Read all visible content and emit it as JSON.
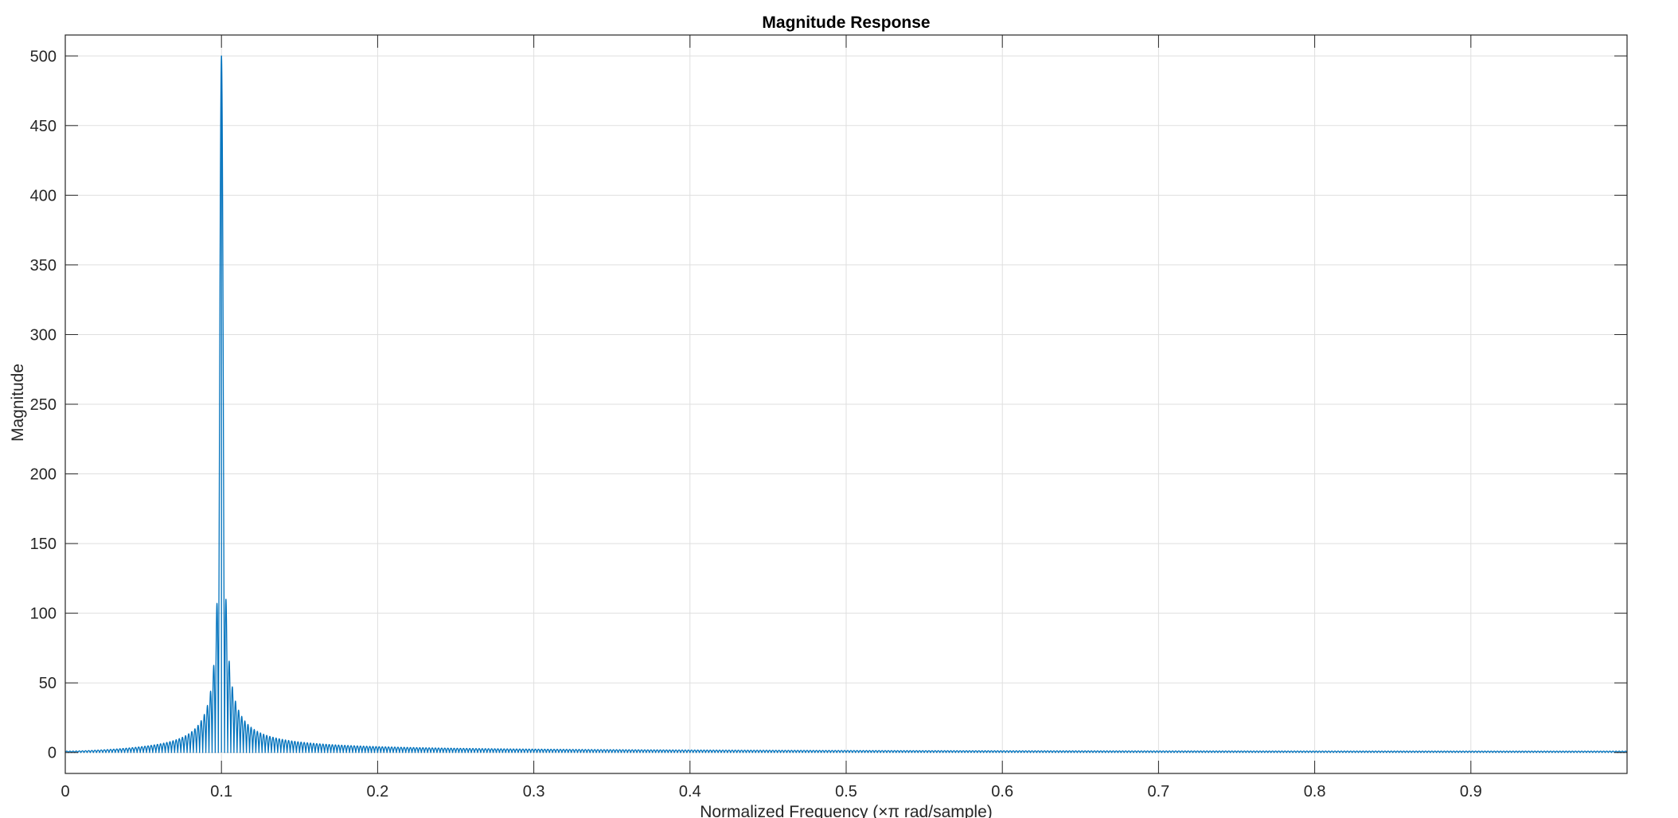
{
  "colors": {
    "line": "#0072BD",
    "grid": "#dfdfdf",
    "axes": "#262626",
    "background": "#ffffff"
  },
  "chart_data": {
    "type": "line",
    "title": "Magnitude Response",
    "xlabel": "Normalized Frequency (×π rad/sample)",
    "ylabel": "Magnitude",
    "xlim": [
      0,
      1
    ],
    "ylim": [
      -15,
      515
    ],
    "grid": true,
    "xticks": [
      0,
      0.1,
      0.2,
      0.3,
      0.4,
      0.5,
      0.6,
      0.7,
      0.8,
      0.9
    ],
    "xtick_labels": [
      "0",
      "0.1",
      "0.2",
      "0.3",
      "0.4",
      "0.5",
      "0.6",
      "0.7",
      "0.8",
      "0.9"
    ],
    "yticks": [
      0,
      50,
      100,
      150,
      200,
      250,
      300,
      350,
      400,
      450,
      500
    ],
    "ytick_labels": [
      "0",
      "50",
      "100",
      "150",
      "200",
      "250",
      "300",
      "350",
      "400",
      "450",
      "500"
    ],
    "series": [
      {
        "peak_frequency": 0.1,
        "peak_magnitude": 500,
        "sidelobe_peaks": [
          {
            "x": 0.0975,
            "y": 107
          },
          {
            "x": 0.1025,
            "y": 110
          },
          {
            "x": 0.095,
            "y": 62
          },
          {
            "x": 0.105,
            "y": 65
          },
          {
            "x": 0.0925,
            "y": 44
          },
          {
            "x": 0.1075,
            "y": 46
          }
        ],
        "baseline_magnitude": 1
      }
    ]
  }
}
